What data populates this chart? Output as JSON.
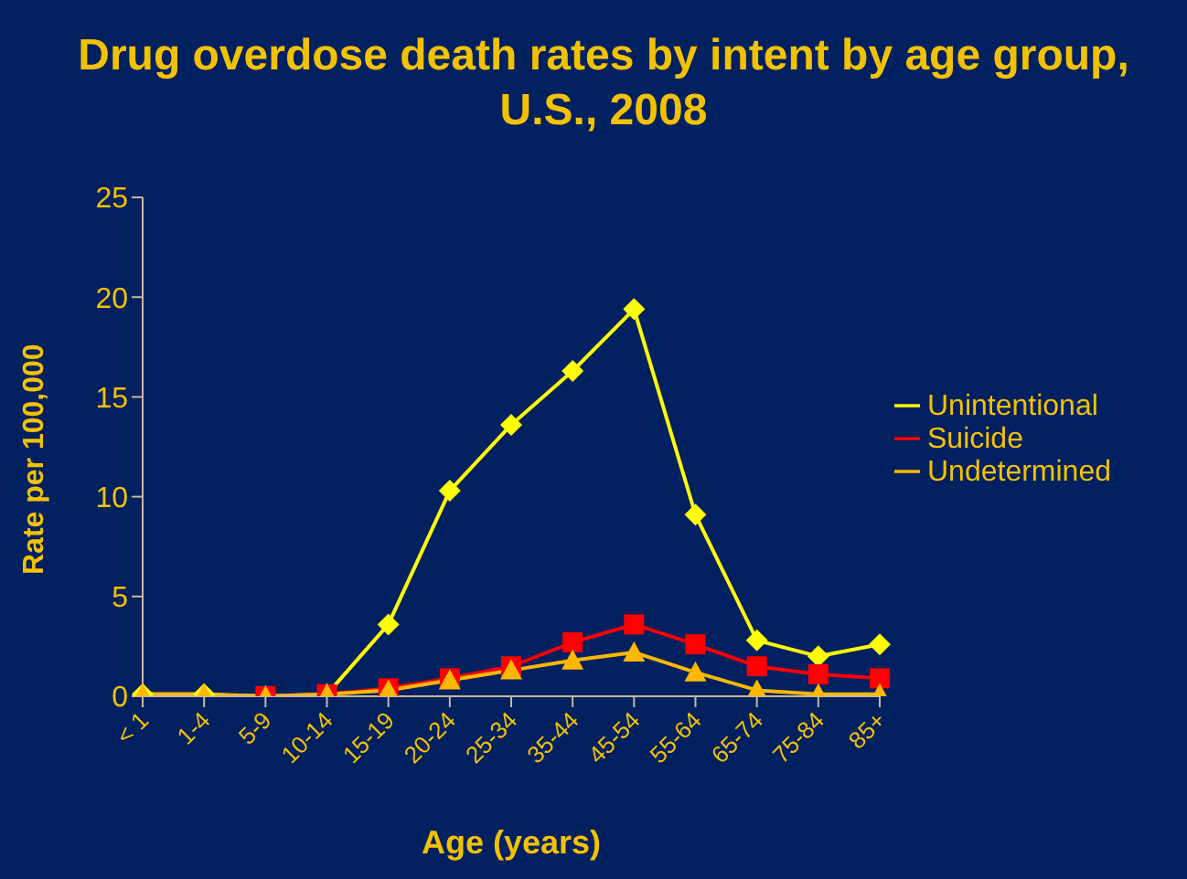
{
  "chart_data": {
    "type": "line",
    "title": "Drug overdose death rates by intent by age group, U.S., 2008",
    "xlabel": "Age (years)",
    "ylabel": "Rate per 100,000",
    "categories": [
      "< 1",
      "1-4",
      "5-9",
      "10-14",
      "15-19",
      "20-24",
      "25-34",
      "35-44",
      "45-54",
      "55-64",
      "65-74",
      "75-84",
      "85+"
    ],
    "series": [
      {
        "name": "Unintentional",
        "color": "#ffff00",
        "marker": "diamond",
        "values": [
          0.1,
          0.1,
          0,
          0.1,
          3.6,
          10.3,
          13.6,
          16.3,
          19.4,
          9.1,
          2.8,
          2.0,
          2.6
        ]
      },
      {
        "name": "Suicide",
        "color": "#ff0000",
        "marker": "square",
        "values": [
          null,
          null,
          0,
          0.1,
          0.4,
          0.9,
          1.5,
          2.7,
          3.6,
          2.6,
          1.5,
          1.1,
          0.9
        ]
      },
      {
        "name": "Undetermined",
        "color": "#ffb800",
        "marker": "triangle",
        "values": [
          0.1,
          0.1,
          0,
          0.1,
          0.3,
          0.8,
          1.3,
          1.8,
          2.2,
          1.2,
          0.3,
          0.1,
          0.1
        ]
      }
    ],
    "ylim": [
      0,
      25
    ],
    "yticks": [
      0,
      5,
      10,
      15,
      20,
      25
    ],
    "grid": false,
    "legend": "right"
  }
}
